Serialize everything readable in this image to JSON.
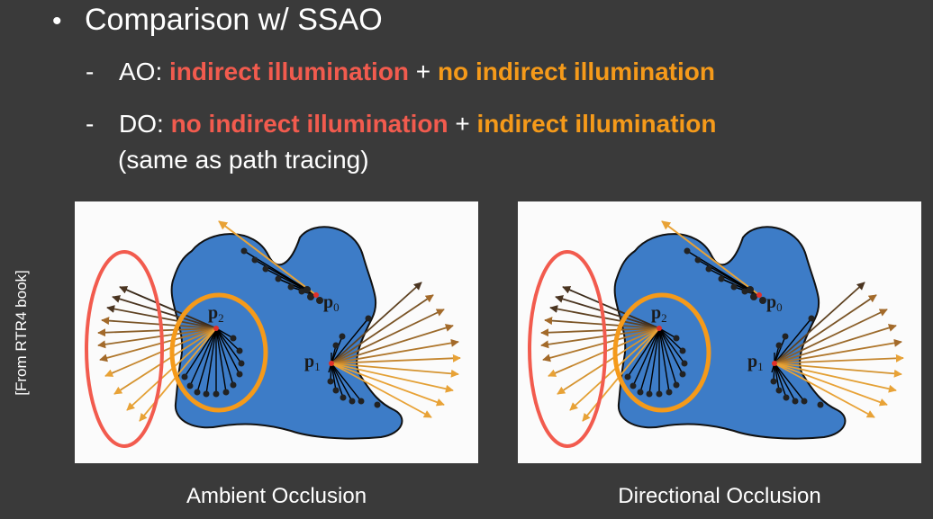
{
  "bullet": {
    "marker": "•",
    "text": "Comparison w/ SSAO"
  },
  "items": [
    {
      "dash": "-",
      "prefix": "AO: ",
      "part1": "indirect illumination",
      "plus": " + ",
      "part2": "no indirect illumination",
      "part1_color": "#f25b4e",
      "part2_color": "#f59a1a"
    },
    {
      "dash": "-",
      "prefix": "DO: ",
      "part1": "no indirect illumination",
      "plus": " + ",
      "part2": "indirect illumination",
      "note": "(same as path tracing)",
      "part1_color": "#f25b4e",
      "part2_color": "#f59a1a"
    }
  ],
  "side_note": "[From RTR4 book]",
  "figures": [
    {
      "caption": "Ambient Occlusion",
      "labels": {
        "p0": "p",
        "p0_sub": "0",
        "p1": "p",
        "p1_sub": "1",
        "p2": "p",
        "p2_sub": "2"
      }
    },
    {
      "caption": "Directional Occlusion",
      "labels": {
        "p0": "p",
        "p0_sub": "0",
        "p1": "p",
        "p1_sub": "1",
        "p2": "p",
        "p2_sub": "2"
      }
    }
  ],
  "colors": {
    "background": "#3a3a3a",
    "blob": "#3d7cc7",
    "highlight_red": "#f25b4e",
    "highlight_orange": "#f59a1a"
  }
}
